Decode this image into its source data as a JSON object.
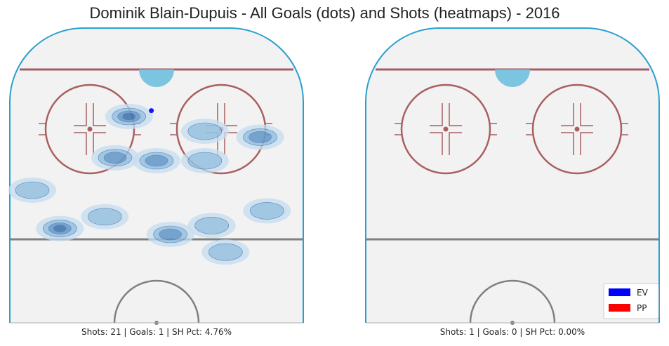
{
  "title": "Dominik Blain-Dupuis - All Goals (dots) and Shots (heatmaps) - 2016",
  "colors": {
    "rink": "#f2f2f2",
    "board": "#2aa0d0",
    "red_line": "#a06068",
    "circle": "#a86060",
    "crease": "#7cc4e0",
    "center_line": "#808080",
    "heat_light": "#c6dcf0",
    "heat_mid": "#8ab8dc",
    "heat_strong": "#5a8fc4",
    "heat_dark": "#3a6aa8",
    "ev": "#0000ff",
    "pp": "#ff0000"
  },
  "legend": [
    {
      "label": "EV",
      "color": "#0000ff"
    },
    {
      "label": "PP",
      "color": "#ff0000"
    }
  ],
  "chart_data": [
    {
      "type": "heatmap",
      "panel": "EV",
      "caption": "Shots: 21 | Goals: 1 | SH Pct: 4.76%",
      "stats": {
        "shots": 21,
        "goals": 1,
        "sh_pct": 4.76
      },
      "xlim": [
        -42.5,
        42.5
      ],
      "ylim": [
        0,
        100
      ],
      "goals": [
        {
          "x": -1.5,
          "y": 72,
          "strength": "EV"
        }
      ],
      "shot_density": [
        {
          "x": -8,
          "y": 70,
          "level": 3
        },
        {
          "x": -12,
          "y": 56,
          "level": 2
        },
        {
          "x": 0,
          "y": 55,
          "level": 2
        },
        {
          "x": 14,
          "y": 55,
          "level": 1
        },
        {
          "x": 30,
          "y": 63,
          "level": 2
        },
        {
          "x": 14,
          "y": 65,
          "level": 1
        },
        {
          "x": -36,
          "y": 45,
          "level": 1
        },
        {
          "x": -28,
          "y": 32,
          "level": 3
        },
        {
          "x": -15,
          "y": 36,
          "level": 1
        },
        {
          "x": 4,
          "y": 30,
          "level": 2
        },
        {
          "x": 16,
          "y": 33,
          "level": 1
        },
        {
          "x": 20,
          "y": 24,
          "level": 1
        },
        {
          "x": 32,
          "y": 38,
          "level": 1
        }
      ]
    },
    {
      "type": "heatmap",
      "panel": "PP",
      "caption": "Shots: 1 | Goals: 0 | SH Pct: 0.00%",
      "stats": {
        "shots": 1,
        "goals": 0,
        "sh_pct": 0.0
      },
      "xlim": [
        -42.5,
        42.5
      ],
      "ylim": [
        0,
        100
      ],
      "goals": [],
      "shot_density": []
    }
  ]
}
